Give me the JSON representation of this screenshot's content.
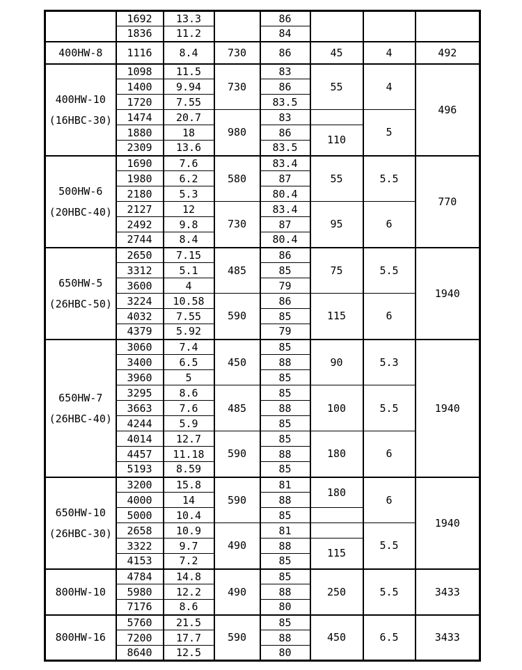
{
  "colors": {
    "background": "#ffffff",
    "text": "#000000",
    "border": "#000000"
  },
  "table": {
    "sections": [
      {
        "model": "",
        "rows": [
          {
            "flow": "1692",
            "head": "13.3",
            "eff": "86"
          },
          {
            "flow": "1836",
            "head": "11.2",
            "eff": "84"
          }
        ],
        "speed_cells": [
          {
            "value": "",
            "span": 2
          }
        ],
        "power_cells": [
          {
            "value": "",
            "span": 2
          }
        ],
        "extra_cells": [
          {
            "value": "",
            "span": 2
          }
        ],
        "weight": ""
      },
      {
        "model": "400HW-8",
        "rows": [
          {
            "flow": "1116",
            "head": "8.4",
            "eff": "86"
          }
        ],
        "speed_cells": [
          {
            "value": "730",
            "span": 1
          }
        ],
        "power_cells": [
          {
            "value": "45",
            "span": 1
          }
        ],
        "extra_cells": [
          {
            "value": "4",
            "span": 1
          }
        ],
        "weight": "492"
      },
      {
        "model": "400HW-10\n(16HBC-30)",
        "rows": [
          {
            "flow": "1098",
            "head": "11.5",
            "eff": "83"
          },
          {
            "flow": "1400",
            "head": "9.94",
            "eff": "86"
          },
          {
            "flow": "1720",
            "head": "7.55",
            "eff": "83.5"
          },
          {
            "flow": "1474",
            "head": "20.7",
            "eff": "83"
          },
          {
            "flow": "1880",
            "head": "18",
            "eff": "86"
          },
          {
            "flow": "2309",
            "head": "13.6",
            "eff": "83.5"
          }
        ],
        "speed_cells": [
          {
            "value": "730",
            "span": 3
          },
          {
            "value": "980",
            "span": 3
          }
        ],
        "power_cells": [
          {
            "value": "55",
            "span": 3
          },
          {
            "value": "",
            "span": 1
          },
          {
            "value": "110",
            "span": 2
          }
        ],
        "extra_cells": [
          {
            "value": "4",
            "span": 3
          },
          {
            "value": "5",
            "span": 3
          }
        ],
        "weight": "496"
      },
      {
        "model": "500HW-6\n(20HBC-40)",
        "rows": [
          {
            "flow": "1690",
            "head": "7.6",
            "eff": "83.4"
          },
          {
            "flow": "1980",
            "head": "6.2",
            "eff": "87"
          },
          {
            "flow": "2180",
            "head": "5.3",
            "eff": "80.4"
          },
          {
            "flow": "2127",
            "head": "12",
            "eff": "83.4"
          },
          {
            "flow": "2492",
            "head": "9.8",
            "eff": "87"
          },
          {
            "flow": "2744",
            "head": "8.4",
            "eff": "80.4"
          }
        ],
        "speed_cells": [
          {
            "value": "580",
            "span": 3
          },
          {
            "value": "730",
            "span": 3
          }
        ],
        "power_cells": [
          {
            "value": "55",
            "span": 3
          },
          {
            "value": "95",
            "span": 3
          }
        ],
        "extra_cells": [
          {
            "value": "5.5",
            "span": 3
          },
          {
            "value": "6",
            "span": 3
          }
        ],
        "weight": "770"
      },
      {
        "model": "650HW-5\n(26HBC-50)",
        "rows": [
          {
            "flow": "2650",
            "head": "7.15",
            "eff": "86"
          },
          {
            "flow": "3312",
            "head": "5.1",
            "eff": "85"
          },
          {
            "flow": "3600",
            "head": "4",
            "eff": "79"
          },
          {
            "flow": "3224",
            "head": "10.58",
            "eff": "86"
          },
          {
            "flow": "4032",
            "head": "7.55",
            "eff": "85"
          },
          {
            "flow": "4379",
            "head": "5.92",
            "eff": "79"
          }
        ],
        "speed_cells": [
          {
            "value": "485",
            "span": 3
          },
          {
            "value": "590",
            "span": 3
          }
        ],
        "power_cells": [
          {
            "value": "75",
            "span": 3
          },
          {
            "value": "115",
            "span": 3
          }
        ],
        "extra_cells": [
          {
            "value": "5.5",
            "span": 3
          },
          {
            "value": "6",
            "span": 3
          }
        ],
        "weight": "1940"
      },
      {
        "model": "650HW-7\n(26HBC-40)",
        "rows": [
          {
            "flow": "3060",
            "head": "7.4",
            "eff": "85"
          },
          {
            "flow": "3400",
            "head": "6.5",
            "eff": "88"
          },
          {
            "flow": "3960",
            "head": "5",
            "eff": "85"
          },
          {
            "flow": "3295",
            "head": "8.6",
            "eff": "85"
          },
          {
            "flow": "3663",
            "head": "7.6",
            "eff": "88"
          },
          {
            "flow": "4244",
            "head": "5.9",
            "eff": "85"
          },
          {
            "flow": "4014",
            "head": "12.7",
            "eff": "85"
          },
          {
            "flow": "4457",
            "head": "11.18",
            "eff": "88"
          },
          {
            "flow": "5193",
            "head": "8.59",
            "eff": "85"
          }
        ],
        "speed_cells": [
          {
            "value": "450",
            "span": 3
          },
          {
            "value": "485",
            "span": 3
          },
          {
            "value": "590",
            "span": 3
          }
        ],
        "power_cells": [
          {
            "value": "90",
            "span": 3
          },
          {
            "value": "100",
            "span": 3
          },
          {
            "value": "180",
            "span": 3
          }
        ],
        "extra_cells": [
          {
            "value": "5.3",
            "span": 3
          },
          {
            "value": "5.5",
            "span": 3
          },
          {
            "value": "6",
            "span": 3
          }
        ],
        "weight": "1940"
      },
      {
        "model": "650HW-10\n(26HBC-30)",
        "rows": [
          {
            "flow": "3200",
            "head": "15.8",
            "eff": "81"
          },
          {
            "flow": "4000",
            "head": "14",
            "eff": "88"
          },
          {
            "flow": "5000",
            "head": "10.4",
            "eff": "85"
          },
          {
            "flow": "2658",
            "head": "10.9",
            "eff": "81"
          },
          {
            "flow": "3322",
            "head": "9.7",
            "eff": "88"
          },
          {
            "flow": "4153",
            "head": "7.2",
            "eff": "85"
          }
        ],
        "speed_cells": [
          {
            "value": "590",
            "span": 3
          },
          {
            "value": "490",
            "span": 3
          }
        ],
        "power_cells": [
          {
            "value": "180",
            "span": 2
          },
          {
            "value": "",
            "span": 1
          },
          {
            "value": "",
            "span": 1
          },
          {
            "value": "115",
            "span": 2
          }
        ],
        "extra_cells": [
          {
            "value": "6",
            "span": 3
          },
          {
            "value": "5.5",
            "span": 3
          }
        ],
        "weight": "1940"
      },
      {
        "model": "800HW-10",
        "rows": [
          {
            "flow": "4784",
            "head": "14.8",
            "eff": "85"
          },
          {
            "flow": "5980",
            "head": "12.2",
            "eff": "88"
          },
          {
            "flow": "7176",
            "head": "8.6",
            "eff": "80"
          }
        ],
        "speed_cells": [
          {
            "value": "490",
            "span": 3
          }
        ],
        "power_cells": [
          {
            "value": "250",
            "span": 3
          }
        ],
        "extra_cells": [
          {
            "value": "5.5",
            "span": 3
          }
        ],
        "weight": "3433"
      },
      {
        "model": "800HW-16",
        "rows": [
          {
            "flow": "5760",
            "head": "21.5",
            "eff": "85"
          },
          {
            "flow": "7200",
            "head": "17.7",
            "eff": "88"
          },
          {
            "flow": "8640",
            "head": "12.5",
            "eff": "80"
          }
        ],
        "speed_cells": [
          {
            "value": "590",
            "span": 3
          }
        ],
        "power_cells": [
          {
            "value": "450",
            "span": 3
          }
        ],
        "extra_cells": [
          {
            "value": "6.5",
            "span": 3
          }
        ],
        "weight": "3433"
      }
    ]
  }
}
